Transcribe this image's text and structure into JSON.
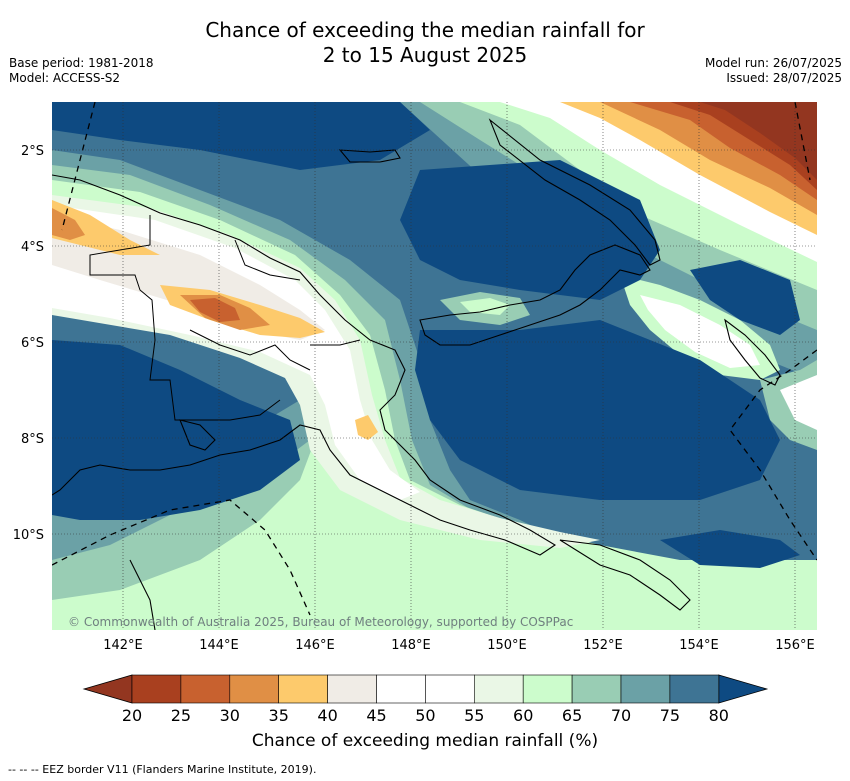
{
  "header": {
    "title_line1": "Chance of exceeding the median rainfall for",
    "title_line2": "2 to 15 August 2025",
    "base_period": "Base period: 1981-2018",
    "model": "Model: ACCESS-S2",
    "model_run": "Model run: 26/07/2025",
    "issued": "Issued: 28/07/2025"
  },
  "map": {
    "copyright": "© Commonwealth of Australia 2025, Bureau of Meteorology, supported by COSPPac",
    "lat_labels": [
      "2°S",
      "4°S",
      "6°S",
      "8°S",
      "10°S"
    ],
    "lon_labels": [
      "142°E",
      "144°E",
      "146°E",
      "148°E",
      "150°E",
      "152°E",
      "154°E",
      "156°E"
    ]
  },
  "colorbar": {
    "ticks": [
      "20",
      "25",
      "30",
      "35",
      "40",
      "45",
      "50",
      "55",
      "60",
      "65",
      "70",
      "75",
      "80"
    ],
    "colors": [
      "#a9401f",
      "#c8612f",
      "#e08f45",
      "#fdca6c",
      "#f0ece6",
      "#ffffff",
      "#ffffff",
      "#eaf7e6",
      "#ccfccc",
      "#99cdb4",
      "#6ba1a6",
      "#3e7494"
    ],
    "low_extend_color": "#933620",
    "high_extend_color": "#0e4a82",
    "label": "Chance of exceeding median rainfall (%)"
  },
  "footer": {
    "eez_note": "--  --  -- EEZ border V11 (Flanders Marine Institute, 2019)."
  }
}
